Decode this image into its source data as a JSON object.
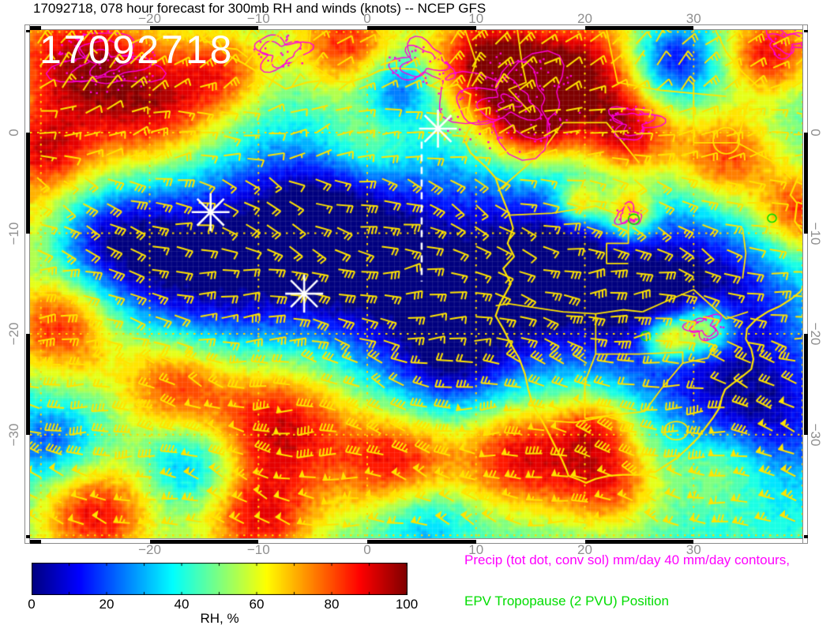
{
  "title": "17092718, 078 hour forecast for 300mb RH and winds (knots) -- NCEP GFS",
  "timestamp_overlay": "17092718",
  "legend": {
    "precip_label": "Precip (tot dot, conv sol) mm/day 40 mm/day contours,",
    "precip_color": "#ff00ff",
    "epv_label": "EPV Tropopause (2 PVU) Position",
    "epv_color": "#00dd00"
  },
  "colorbar": {
    "label": "RH, %",
    "min": 0,
    "max": 100,
    "tick_values": [
      0,
      20,
      40,
      60,
      80,
      100
    ]
  },
  "chart_data": {
    "type": "heatmap",
    "field_name": "300mb relative humidity, %",
    "overlay": "wind barbs (knots), precip contours, EPV tropopause position",
    "model_run": "17092718",
    "forecast_hour": "078",
    "source": "NCEP GFS",
    "lon_range": [
      -31,
      40
    ],
    "lat_range": [
      -40.3,
      10.2
    ],
    "lon_ticks": [
      -20,
      -10,
      0,
      10,
      20,
      30
    ],
    "lat_ticks": [
      0,
      -10,
      -20,
      -30
    ],
    "grid_on": true,
    "graticule_step_deg": 10,
    "seed": 7,
    "colors": {
      "coast": "#ffe400",
      "barb": "#ffe400",
      "graticule": "#ffd800",
      "precip": "#ff00dd",
      "epv": "#00dd00",
      "marker": "#ffffff"
    },
    "rh_base": 42,
    "rh_blobs": [
      [
        -27,
        7,
        50,
        5
      ],
      [
        -19,
        2.5,
        42,
        4.5
      ],
      [
        -30,
        -2,
        35,
        3
      ],
      [
        -13,
        6.5,
        30,
        3
      ],
      [
        -2,
        9,
        42,
        3.5
      ],
      [
        3,
        4.5,
        -30,
        2.5
      ],
      [
        11,
        7,
        55,
        4
      ],
      [
        20,
        6,
        52,
        4.5
      ],
      [
        28,
        7,
        -38,
        2.8
      ],
      [
        37,
        8,
        46,
        3
      ],
      [
        15,
        1,
        45,
        3
      ],
      [
        24,
        -0.5,
        40,
        3
      ],
      [
        33,
        -2.5,
        40,
        3.5
      ],
      [
        40,
        -8,
        42,
        3
      ],
      [
        -25,
        -5,
        18,
        4
      ],
      [
        -5,
        -9,
        -35,
        5
      ],
      [
        -24,
        -10,
        -30,
        4
      ],
      [
        -16,
        -14,
        -42,
        7
      ],
      [
        3,
        -14,
        -40,
        7
      ],
      [
        17,
        -14,
        -45,
        6
      ],
      [
        30,
        -17,
        -45,
        6
      ],
      [
        36,
        -28,
        -35,
        5
      ],
      [
        8,
        -23,
        -28,
        4
      ],
      [
        -28,
        -19,
        48,
        4
      ],
      [
        -18,
        -24.5,
        45,
        4
      ],
      [
        -8,
        -29,
        50,
        5
      ],
      [
        3,
        -33,
        45,
        4
      ],
      [
        14,
        -32,
        46,
        4
      ],
      [
        22,
        -34.5,
        40,
        3.5
      ],
      [
        -25,
        -38,
        46,
        4
      ],
      [
        -10,
        -39,
        40,
        4
      ],
      [
        -29,
        -31,
        -25,
        3
      ],
      [
        -16,
        -33,
        -26,
        3
      ],
      [
        5,
        -38,
        -22,
        3
      ],
      [
        27.5,
        -20.5,
        50,
        1.6
      ],
      [
        31,
        -19.5,
        55,
        2
      ],
      [
        24,
        -8,
        45,
        1.8
      ],
      [
        19.5,
        -7,
        40,
        1.5
      ],
      [
        33,
        -33,
        22,
        3
      ],
      [
        -31,
        -9,
        20,
        3
      ],
      [
        21,
        -29,
        28,
        2.5
      ],
      [
        0,
        -1,
        18,
        3
      ]
    ],
    "wind_zones": [
      {
        "lat_min": 3,
        "lat_max": 10.5,
        "dir_from": 50,
        "speed_kt": 17
      },
      {
        "lat_min": -3,
        "lat_max": 3,
        "dir_from": 80,
        "speed_kt": 12
      },
      {
        "lat_min": -13,
        "lat_max": -3,
        "dir_from": 110,
        "speed_kt": 20
      },
      {
        "lat_min": -21,
        "lat_max": -13,
        "dir_from": 95,
        "speed_kt": 25
      },
      {
        "lat_min": -27,
        "lat_max": -21,
        "dir_from": 285,
        "speed_kt": 28
      },
      {
        "lat_min": -33,
        "lat_max": -27,
        "dir_from": 280,
        "speed_kt": 45
      },
      {
        "lat_min": -41,
        "lat_max": -33,
        "dir_from": 285,
        "speed_kt": 58
      }
    ],
    "barb_spacing_px": 29,
    "coastline": [
      [
        [
          -15.6,
          10.2
        ],
        [
          -15,
          9
        ],
        [
          -13.7,
          9.1
        ],
        [
          -13.2,
          8
        ],
        [
          -12.5,
          7.5
        ],
        [
          -11.4,
          6.9
        ],
        [
          -10.5,
          6.3
        ],
        [
          -8.5,
          5
        ],
        [
          -7.5,
          4.35
        ],
        [
          -5.5,
          5
        ],
        [
          -4,
          5.2
        ],
        [
          -2.7,
          5.1
        ],
        [
          -1.6,
          5
        ],
        [
          0,
          5.6
        ],
        [
          1.2,
          6.2
        ],
        [
          2.5,
          6.4
        ],
        [
          4.5,
          6.3
        ],
        [
          5.3,
          5.5
        ],
        [
          5.5,
          4.8
        ],
        [
          6.8,
          4.3
        ],
        [
          8.3,
          4.8
        ],
        [
          8.9,
          4.1
        ],
        [
          9.5,
          3.8
        ],
        [
          9.3,
          2.3
        ],
        [
          9.8,
          1
        ],
        [
          9.3,
          0.3
        ],
        [
          8.9,
          -0.7
        ],
        [
          9.5,
          -2
        ],
        [
          11,
          -3.5
        ],
        [
          11.8,
          -4.5
        ],
        [
          12.2,
          -5.8
        ],
        [
          13,
          -8
        ],
        [
          13.4,
          -9.5
        ],
        [
          12.9,
          -11
        ],
        [
          13.5,
          -12.3
        ],
        [
          12.5,
          -13.5
        ],
        [
          13.2,
          -15
        ],
        [
          12.2,
          -17
        ],
        [
          11.8,
          -18.2
        ],
        [
          12.5,
          -19.5
        ],
        [
          13.2,
          -21
        ],
        [
          14,
          -22.5
        ],
        [
          14.5,
          -24
        ],
        [
          14.8,
          -25.5
        ],
        [
          15.2,
          -27
        ],
        [
          16,
          -28.5
        ],
        [
          16.5,
          -29.5
        ],
        [
          17.2,
          -31
        ],
        [
          17.9,
          -32.5
        ],
        [
          18.3,
          -33.5
        ],
        [
          18.5,
          -34.1
        ],
        [
          19.5,
          -34.5
        ],
        [
          20.1,
          -34.8
        ],
        [
          21,
          -34.4
        ],
        [
          22.2,
          -34.1
        ],
        [
          23.5,
          -34
        ],
        [
          25,
          -34
        ],
        [
          25.8,
          -33.7
        ],
        [
          26.5,
          -33.7
        ],
        [
          27.5,
          -33
        ],
        [
          28.5,
          -32.3
        ],
        [
          29.5,
          -31.3
        ],
        [
          30.5,
          -30.2
        ],
        [
          31.1,
          -29.3
        ],
        [
          31.8,
          -28.3
        ],
        [
          32.4,
          -27.3
        ],
        [
          32.6,
          -26.3
        ],
        [
          32.9,
          -25.5
        ],
        [
          33.5,
          -25
        ],
        [
          34.5,
          -24.2
        ],
        [
          35.3,
          -23.5
        ],
        [
          35.5,
          -22.5
        ],
        [
          35.3,
          -21.5
        ],
        [
          34.8,
          -20.5
        ],
        [
          34.9,
          -19.5
        ],
        [
          35.8,
          -18.5
        ],
        [
          36.8,
          -17.8
        ],
        [
          38,
          -17.2
        ],
        [
          39,
          -16.5
        ],
        [
          39.8,
          -15.8
        ],
        [
          40.3,
          -15
        ]
      ],
      [
        [
          40.3,
          -2.5
        ],
        [
          39.7,
          -4.2
        ],
        [
          38.9,
          -6.2
        ],
        [
          39.5,
          -7
        ],
        [
          39.3,
          -8.8
        ],
        [
          40.3,
          -10.3
        ]
      ]
    ],
    "inland_lines": [
      [
        [
          -16,
          10.2
        ],
        [
          -14,
          8.5
        ],
        [
          -12,
          8.3
        ],
        [
          -11,
          7.5
        ]
      ],
      [
        [
          -5.2,
          10.2
        ],
        [
          -5.5,
          7
        ],
        [
          -3,
          5.3
        ]
      ],
      [
        [
          1.6,
          6.3
        ],
        [
          1.8,
          9
        ],
        [
          0.8,
          10.2
        ]
      ],
      [
        [
          9,
          10.2
        ],
        [
          10,
          7
        ],
        [
          9.2,
          4.5
        ]
      ],
      [
        [
          13.8,
          10.2
        ],
        [
          14.2,
          7
        ],
        [
          14.6,
          5
        ],
        [
          13,
          4.3
        ],
        [
          15,
          2
        ]
      ],
      [
        [
          22,
          10.2
        ],
        [
          23,
          5
        ],
        [
          27,
          4.2
        ],
        [
          33,
          3.6
        ]
      ],
      [
        [
          30,
          5
        ],
        [
          30,
          -1
        ],
        [
          34,
          -1
        ],
        [
          35,
          3
        ]
      ],
      [
        [
          32,
          10.2
        ],
        [
          33,
          8
        ],
        [
          34.5,
          6
        ],
        [
          36,
          4.5
        ]
      ],
      [
        [
          12,
          -5.8
        ],
        [
          16,
          -2
        ],
        [
          18,
          1
        ],
        [
          22,
          1
        ],
        [
          25,
          -3
        ]
      ],
      [
        [
          13,
          -8.2
        ],
        [
          17,
          -8
        ],
        [
          21,
          -7.3
        ],
        [
          24,
          -8.5
        ],
        [
          24,
          -11
        ],
        [
          22,
          -11
        ],
        [
          22,
          -13
        ],
        [
          24,
          -13
        ]
      ],
      [
        [
          11.8,
          -17.2
        ],
        [
          13,
          -17
        ],
        [
          18,
          -17.8
        ],
        [
          21,
          -18
        ],
        [
          23.5,
          -17.6
        ],
        [
          25.3,
          -17.8
        ]
      ],
      [
        [
          21,
          -18
        ],
        [
          21,
          -22
        ],
        [
          20,
          -24.8
        ],
        [
          20,
          -28.4
        ]
      ],
      [
        [
          21,
          -22
        ],
        [
          25,
          -22
        ],
        [
          29,
          -21.8
        ],
        [
          29,
          -22.9
        ],
        [
          31.3,
          -22.4
        ],
        [
          32,
          -21
        ]
      ],
      [
        [
          20,
          -28.4
        ],
        [
          23,
          -28
        ],
        [
          25.5,
          -27.7
        ],
        [
          27,
          -25.5
        ],
        [
          29,
          -22.9
        ]
      ],
      [
        [
          25.3,
          -17.8
        ],
        [
          28,
          -16.5
        ],
        [
          30,
          -15.6
        ],
        [
          33,
          -18.5
        ],
        [
          35,
          -17.8
        ]
      ],
      [
        [
          16.5,
          -28.6
        ],
        [
          19,
          -28.8
        ],
        [
          22,
          -28.2
        ],
        [
          24.5,
          -29
        ]
      ],
      [
        [
          34.5,
          -9.5
        ],
        [
          34.8,
          -12
        ],
        [
          34.5,
          -14.5
        ]
      ],
      [
        [
          34,
          -1
        ],
        [
          37.5,
          -3
        ],
        [
          39,
          -4.6
        ]
      ]
    ],
    "rings": [
      {
        "lon": 28.4,
        "lat": -29.6,
        "rx": 1.1,
        "ry": 0.9
      },
      {
        "lon": 33.0,
        "lat": -0.8,
        "rx": 1.2,
        "ry": 1.3
      }
    ],
    "precip_regions": [
      {
        "lon": -24,
        "lat": 7,
        "rx": 4,
        "ry": 2.5,
        "rings": 3,
        "dots": 60
      },
      {
        "lon": -8,
        "lat": 8,
        "rx": 2.2,
        "ry": 1.5,
        "rings": 2,
        "dots": 20
      },
      {
        "lon": 13,
        "lat": 3,
        "rx": 5.5,
        "ry": 4,
        "rings": 4,
        "dots": 90
      },
      {
        "lon": 5,
        "lat": 7,
        "rx": 2.5,
        "ry": 1.8,
        "rings": 2,
        "dots": 25
      },
      {
        "lon": 24.5,
        "lat": 1,
        "rx": 2,
        "ry": 1.5,
        "rings": 2,
        "dots": 20
      },
      {
        "lon": 31,
        "lat": -19.3,
        "rx": 1.4,
        "ry": 1.1,
        "rings": 2,
        "dots": 12
      },
      {
        "lon": 24,
        "lat": -8.2,
        "rx": 1.1,
        "ry": 0.9,
        "rings": 2,
        "dots": 8
      },
      {
        "lon": 38.5,
        "lat": 9,
        "rx": 1.8,
        "ry": 1.2,
        "rings": 2,
        "dots": 15
      }
    ],
    "epv_marks": [
      {
        "lon": 24.5,
        "lat": -8.6,
        "r": 0.5
      },
      {
        "lon": 25.6,
        "lat": -20.2,
        "r": 0.45
      },
      {
        "lon": 37.2,
        "lat": -8.5,
        "r": 0.4
      }
    ],
    "storm_markers": [
      {
        "lon": 6.5,
        "lat": 0.4
      },
      {
        "lon": -14.4,
        "lat": -7.9
      },
      {
        "lon": -5.8,
        "lat": -16.0
      }
    ],
    "track_line": {
      "lon": 5.0,
      "lat_from": -0.9,
      "lat_to": -14.8
    }
  }
}
